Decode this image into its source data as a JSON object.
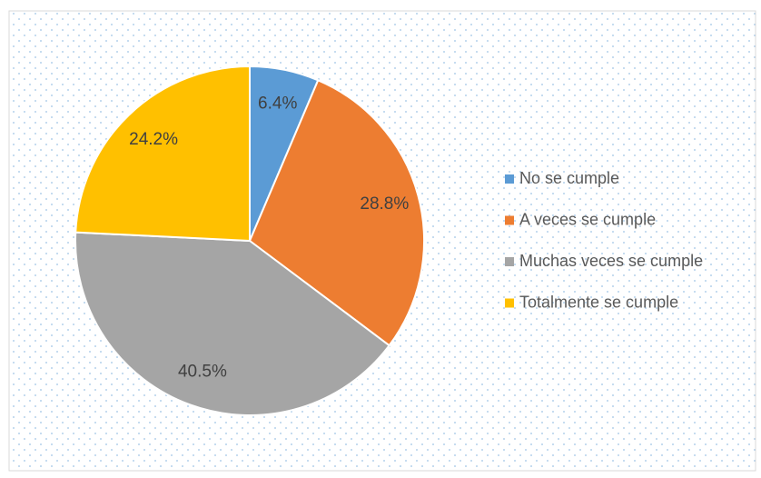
{
  "chart_data": {
    "type": "pie",
    "categories": [
      "No se cumple",
      "A veces se cumple",
      "Muchas veces se cumple",
      "Totalmente se cumple"
    ],
    "values": [
      6.4,
      28.8,
      40.5,
      24.2
    ],
    "value_labels": [
      "6.4%",
      "28.8%",
      "40.5%",
      "24.2%"
    ],
    "colors": [
      "#5b9bd5",
      "#ed7d31",
      "#a5a5a5",
      "#ffc000"
    ],
    "legend": "right"
  }
}
